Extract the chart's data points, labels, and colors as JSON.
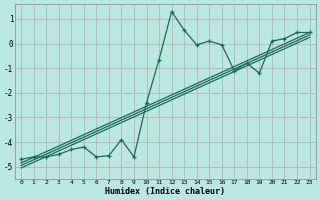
{
  "xlabel": "Humidex (Indice chaleur)",
  "xlim": [
    -0.5,
    23.5
  ],
  "ylim": [
    -5.5,
    1.6
  ],
  "bg_color": "#b8e8e0",
  "grid_color": "#c8dbd8",
  "line_color": "#1a6b5a",
  "x_ticks": [
    0,
    1,
    2,
    3,
    4,
    5,
    6,
    7,
    8,
    9,
    10,
    11,
    12,
    13,
    14,
    15,
    16,
    17,
    18,
    19,
    20,
    21,
    22,
    23
  ],
  "y_ticks": [
    -5,
    -4,
    -3,
    -2,
    -1,
    0,
    1
  ],
  "main_x": [
    0,
    1,
    2,
    3,
    4,
    5,
    6,
    7,
    8,
    9,
    10,
    11,
    12,
    13,
    14,
    15,
    16,
    17,
    18,
    19,
    20,
    21,
    22,
    23
  ],
  "main_y": [
    -4.7,
    -4.6,
    -4.6,
    -4.5,
    -4.3,
    -4.2,
    -4.6,
    -4.55,
    -3.9,
    -4.6,
    -2.4,
    -0.65,
    1.3,
    0.55,
    -0.05,
    0.1,
    -0.05,
    -1.1,
    -0.8,
    -1.2,
    0.1,
    0.2,
    0.45,
    0.45
  ],
  "line1_x": [
    0,
    23
  ],
  "line1_y": [
    -4.85,
    0.45
  ],
  "line2_x": [
    0,
    23
  ],
  "line2_y": [
    -4.95,
    0.35
  ],
  "line3_x": [
    0,
    23
  ],
  "line3_y": [
    -5.05,
    0.25
  ]
}
